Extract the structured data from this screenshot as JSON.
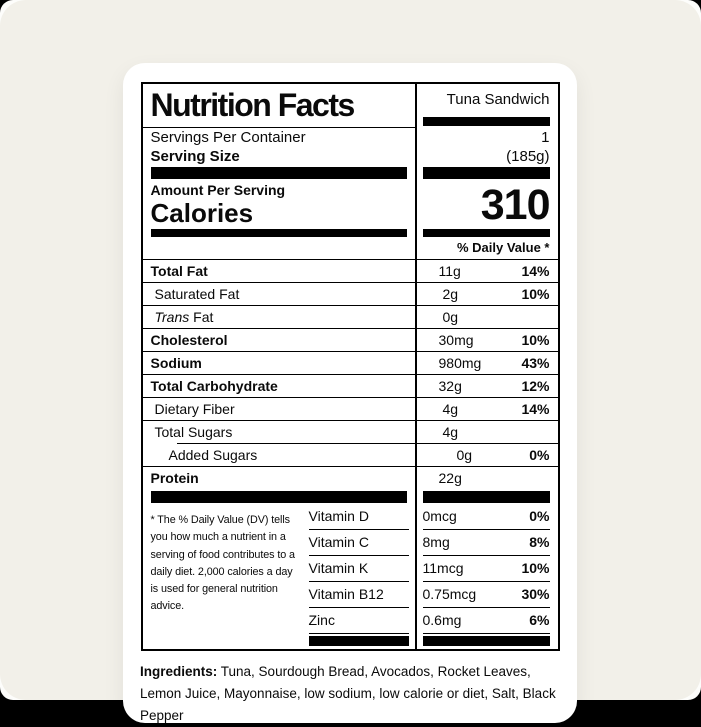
{
  "colors": {
    "page": "#000000",
    "backdrop": "#f2f0e9",
    "card": "#ffffff",
    "ink": "#0a0a0a"
  },
  "label": {
    "title": "Nutrition Facts",
    "product_name": "Tuna Sandwich",
    "servings_per_container_label": "Servings Per Container",
    "servings_per_container_value": "1",
    "serving_size_label": "Serving Size",
    "serving_size_value": "(185g)",
    "amount_per_serving_label": "Amount Per Serving",
    "calories_label": "Calories",
    "calories_value": "310",
    "daily_value_header": "% Daily Value *",
    "nutrients": [
      {
        "name": "Total Fat",
        "bold": true,
        "amount": "11g",
        "dv": "14%"
      },
      {
        "name": "Saturated Fat",
        "indent": 1,
        "amount": "2g",
        "dv": "10%"
      },
      {
        "name": "Fat",
        "italic_prefix": "Trans",
        "indent": 1,
        "amount": "0g",
        "dv": ""
      },
      {
        "name": "Cholesterol",
        "bold": true,
        "amount": "30mg",
        "dv": "10%"
      },
      {
        "name": "Sodium",
        "bold": true,
        "amount": "980mg",
        "dv": "43%"
      },
      {
        "name": "Total Carbohydrate",
        "bold": true,
        "amount": "32g",
        "dv": "12%"
      },
      {
        "name": "Dietary Fiber",
        "indent": 1,
        "amount": "4g",
        "dv": "14%"
      },
      {
        "name": "Total Sugars",
        "indent": 1,
        "rule": "indent",
        "amount": "4g",
        "dv": ""
      },
      {
        "name": "Added Sugars",
        "indent": 2,
        "amount": "0g",
        "dv": "0%"
      },
      {
        "name": "Protein",
        "bold": true,
        "rule": "none",
        "amount": "22g",
        "dv": ""
      }
    ],
    "footnote": "* The % Daily Value (DV) tells you how much a nutrient in a serving of food contributes to a daily diet. 2,000 calories a day is used for general nutrition advice.",
    "vitamins": [
      {
        "name": "Vitamin D",
        "amount": "0mcg",
        "dv": "0%"
      },
      {
        "name": "Vitamin C",
        "amount": "8mg",
        "dv": "8%"
      },
      {
        "name": "Vitamin K",
        "amount": "11mcg",
        "dv": "10%"
      },
      {
        "name": "Vitamin B12",
        "amount": "0.75mcg",
        "dv": "30%"
      },
      {
        "name": "Zinc",
        "amount": "0.6mg",
        "dv": "6%"
      }
    ]
  },
  "ingredients": {
    "label": "Ingredients:",
    "text": "Tuna, Sourdough Bread, Avocados, Rocket Leaves, Lemon Juice, Mayonnaise, low sodium, low calorie or diet, Salt, Black Pepper"
  }
}
